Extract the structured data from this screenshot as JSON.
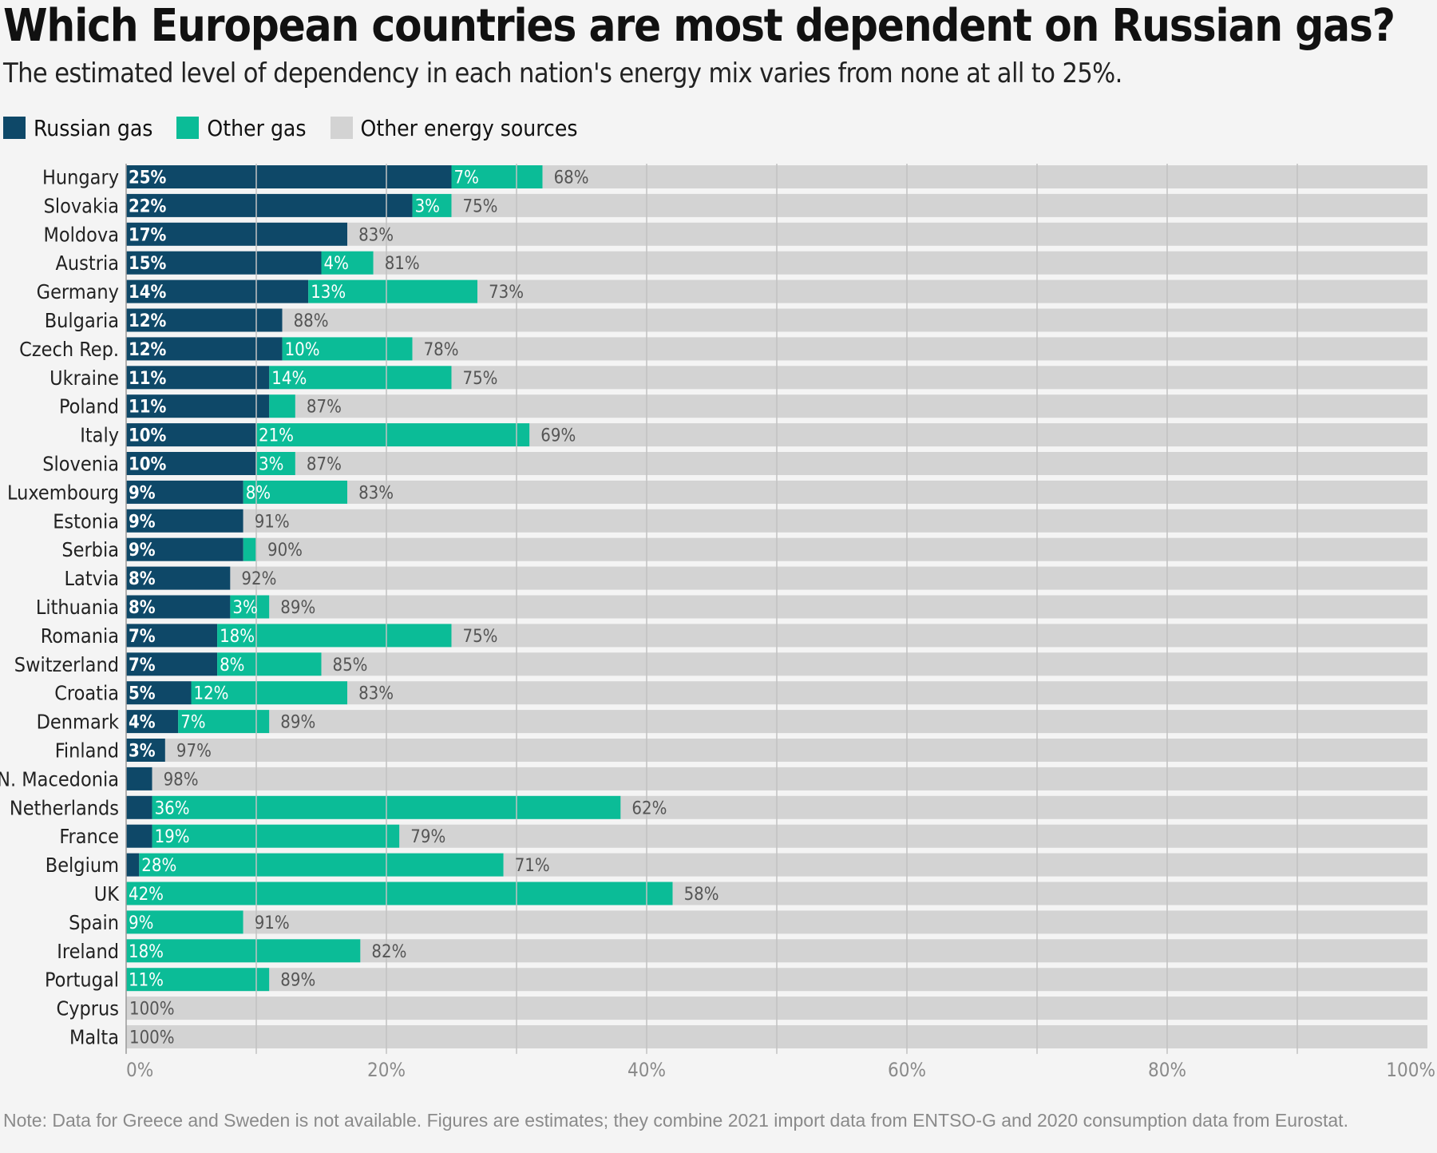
{
  "title": "Which European countries are most dependent on Russian gas?",
  "subtitle": "The estimated level of dependency in each nation's energy mix varies from none at all to 25%.",
  "note": "Note: Data for Greece and Sweden is not available. Figures are estimates; they combine 2021 import data from ENTSO-G and 2020 consumption data from Eurostat.",
  "legend": [
    {
      "label": "Russian gas",
      "color": "#0e4868"
    },
    {
      "label": "Other gas",
      "color": "#0bbc97"
    },
    {
      "label": "Other energy sources",
      "color": "#d3d3d3"
    }
  ],
  "chart_data": {
    "type": "bar",
    "orientation": "horizontal",
    "stacked": true,
    "categories": [
      "Hungary",
      "Slovakia",
      "Moldova",
      "Austria",
      "Germany",
      "Bulgaria",
      "Czech Rep.",
      "Ukraine",
      "Poland",
      "Italy",
      "Slovenia",
      "Luxembourg",
      "Estonia",
      "Serbia",
      "Latvia",
      "Lithuania",
      "Romania",
      "Switzerland",
      "Croatia",
      "Denmark",
      "Finland",
      "N. Macedonia",
      "Netherlands",
      "France",
      "Belgium",
      "UK",
      "Spain",
      "Ireland",
      "Portugal",
      "Cyprus",
      "Malta"
    ],
    "series": [
      {
        "name": "Russian gas",
        "color": "#0e4868",
        "values": [
          25,
          22,
          17,
          15,
          14,
          12,
          12,
          11,
          11,
          10,
          10,
          9,
          9,
          9,
          8,
          8,
          7,
          7,
          5,
          4,
          3,
          2,
          2,
          2,
          1,
          0,
          0,
          0,
          0,
          0,
          0
        ],
        "labels": [
          "25%",
          "22%",
          "17%",
          "15%",
          "14%",
          "12%",
          "12%",
          "11%",
          "11%",
          "10%",
          "10%",
          "9%",
          "9%",
          "9%",
          "8%",
          "8%",
          "7%",
          "7%",
          "5%",
          "4%",
          "3%",
          "",
          "",
          "",
          "",
          "",
          "",
          "",
          "",
          "",
          ""
        ]
      },
      {
        "name": "Other gas",
        "color": "#0bbc97",
        "values": [
          7,
          3,
          0,
          4,
          13,
          0,
          10,
          14,
          2,
          21,
          3,
          8,
          0,
          1,
          0,
          3,
          18,
          8,
          12,
          7,
          0,
          0,
          36,
          19,
          28,
          42,
          9,
          18,
          11,
          0,
          0
        ],
        "labels": [
          "7%",
          "3%",
          "",
          "4%",
          "13%",
          "",
          "10%",
          "14%",
          "",
          "21%",
          "3%",
          "8%",
          "",
          "",
          "",
          "3%",
          "18%",
          "8%",
          "12%",
          "7%",
          "",
          "",
          "36%",
          "19%",
          "28%",
          "42%",
          "9%",
          "18%",
          "11%",
          "",
          ""
        ]
      },
      {
        "name": "Other energy sources",
        "color": "#d3d3d3",
        "values": [
          68,
          75,
          83,
          81,
          73,
          88,
          78,
          75,
          87,
          69,
          87,
          83,
          91,
          90,
          92,
          89,
          75,
          85,
          83,
          89,
          97,
          98,
          62,
          79,
          71,
          58,
          91,
          82,
          89,
          100,
          100
        ],
        "labels": [
          "68%",
          "75%",
          "83%",
          "81%",
          "73%",
          "88%",
          "78%",
          "75%",
          "87%",
          "69%",
          "87%",
          "83%",
          "91%",
          "90%",
          "92%",
          "89%",
          "75%",
          "85%",
          "83%",
          "89%",
          "97%",
          "98%",
          "62%",
          "79%",
          "71%",
          "58%",
          "91%",
          "82%",
          "89%",
          "100%",
          "100%"
        ]
      }
    ],
    "xlim": [
      0,
      100
    ],
    "x_ticks": [
      "0%",
      "20%",
      "40%",
      "60%",
      "80%",
      "100%"
    ],
    "grid": true,
    "legend_position": "top-left"
  }
}
